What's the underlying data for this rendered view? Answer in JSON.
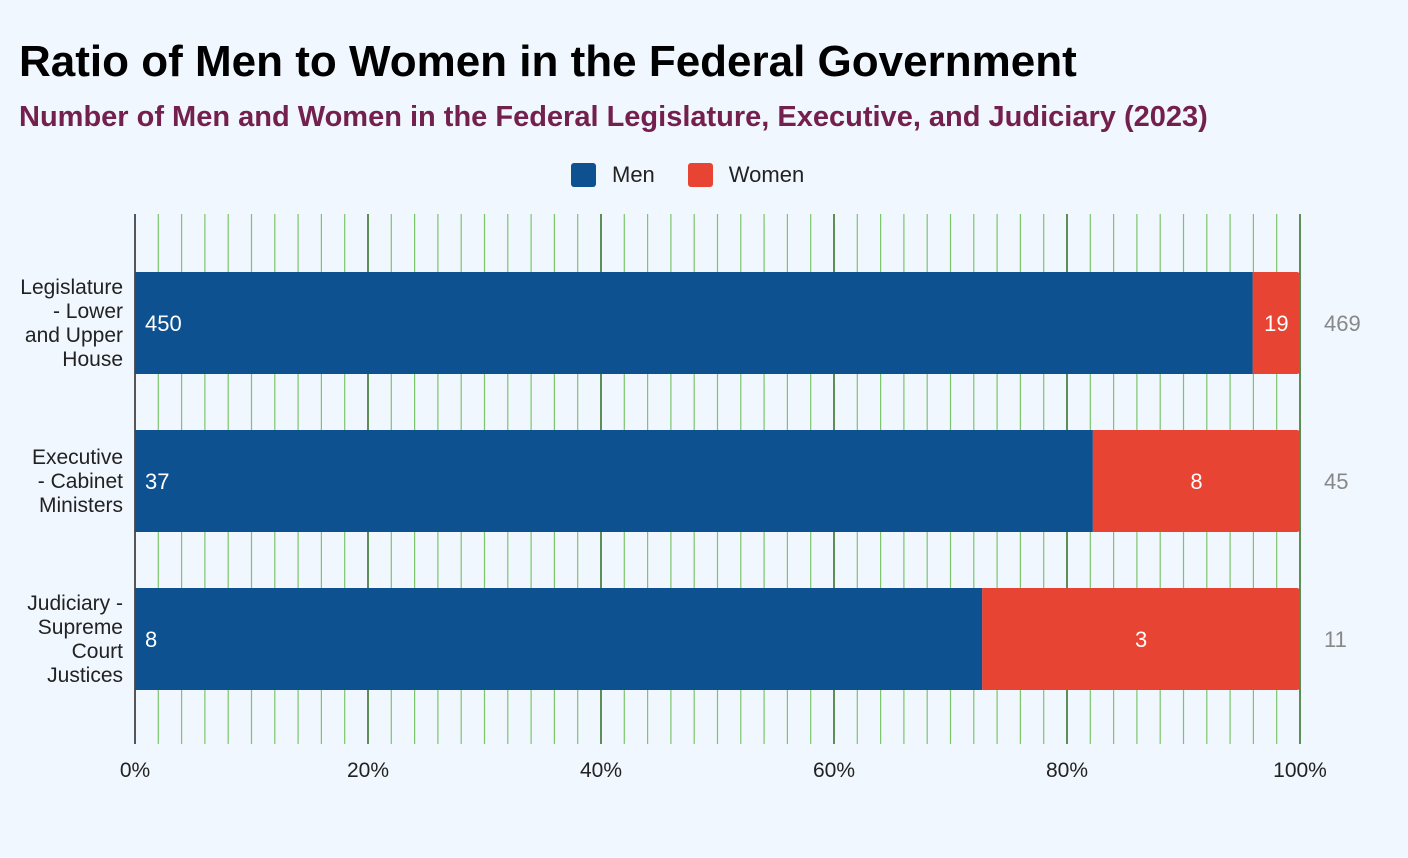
{
  "title": "Ratio of Men to Women in the Federal Government",
  "subtitle": "Number of Men and Women in the Federal Legislature, Executive, and Judiciary (2023)",
  "legend": [
    {
      "label": "Men",
      "color": "#0e5190"
    },
    {
      "label": "Women",
      "color": "#e84434"
    }
  ],
  "chart_data": {
    "type": "bar",
    "orientation": "horizontal",
    "stacked": "percent",
    "categories": [
      [
        "Legislature",
        "- Lower",
        "and Upper",
        "House"
      ],
      [
        "Executive",
        "- Cabinet",
        "Ministers"
      ],
      [
        "Judiciary -",
        "Supreme",
        "Court",
        "Justices"
      ]
    ],
    "series": [
      {
        "name": "Men",
        "values": [
          450,
          37,
          8
        ],
        "color": "#0e5190"
      },
      {
        "name": "Women",
        "values": [
          19,
          8,
          3
        ],
        "color": "#e84434"
      }
    ],
    "totals": [
      469,
      45,
      11
    ],
    "x_ticks": [
      "0%",
      "20%",
      "40%",
      "60%",
      "80%",
      "100%"
    ],
    "xlim": [
      0,
      100
    ],
    "grid": true,
    "legend_position": "top-center"
  }
}
